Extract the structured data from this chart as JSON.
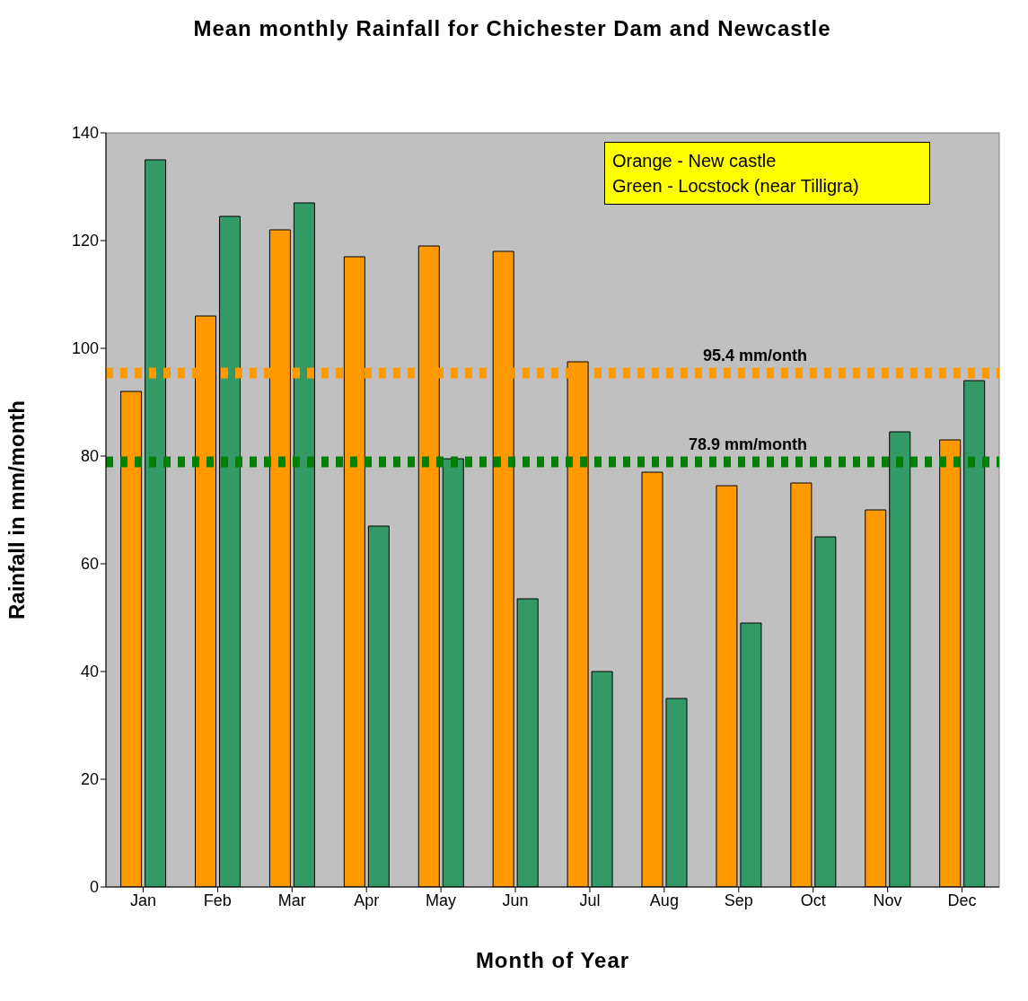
{
  "chart_data": {
    "type": "bar",
    "title": "Mean monthly Rainfall for Chichester Dam and Newcastle",
    "xlabel": "Month of Year",
    "ylabel": "Rainfall in mm/month",
    "categories": [
      "Jan",
      "Feb",
      "Mar",
      "Apr",
      "May",
      "Jun",
      "Jul",
      "Aug",
      "Sep",
      "Oct",
      "Nov",
      "Dec"
    ],
    "series": [
      {
        "color": "#ff9900",
        "values": [
          92,
          106,
          122,
          117,
          119,
          118,
          97.5,
          77,
          74.5,
          75,
          70,
          83
        ]
      },
      {
        "color": "#339966",
        "values": [
          135,
          124.5,
          127,
          67,
          79.5,
          53.5,
          40,
          35,
          49,
          65,
          84.5,
          94
        ]
      }
    ],
    "ylim": [
      0,
      140
    ],
    "yticks": [
      0,
      20,
      40,
      60,
      80,
      100,
      120,
      140
    ],
    "ref_lines": [
      {
        "axis": "y",
        "value": 95.4,
        "label": "95.4 mm/onth",
        "color": "#ff9900",
        "line_style": "dotted"
      },
      {
        "axis": "y",
        "value": 78.9,
        "label": "78.9 mm/month",
        "color": "#008000",
        "line_style": "dotted"
      }
    ],
    "annotations": [
      "Orange - New castle",
      "Green - Locstock (near Tilligra)"
    ]
  }
}
